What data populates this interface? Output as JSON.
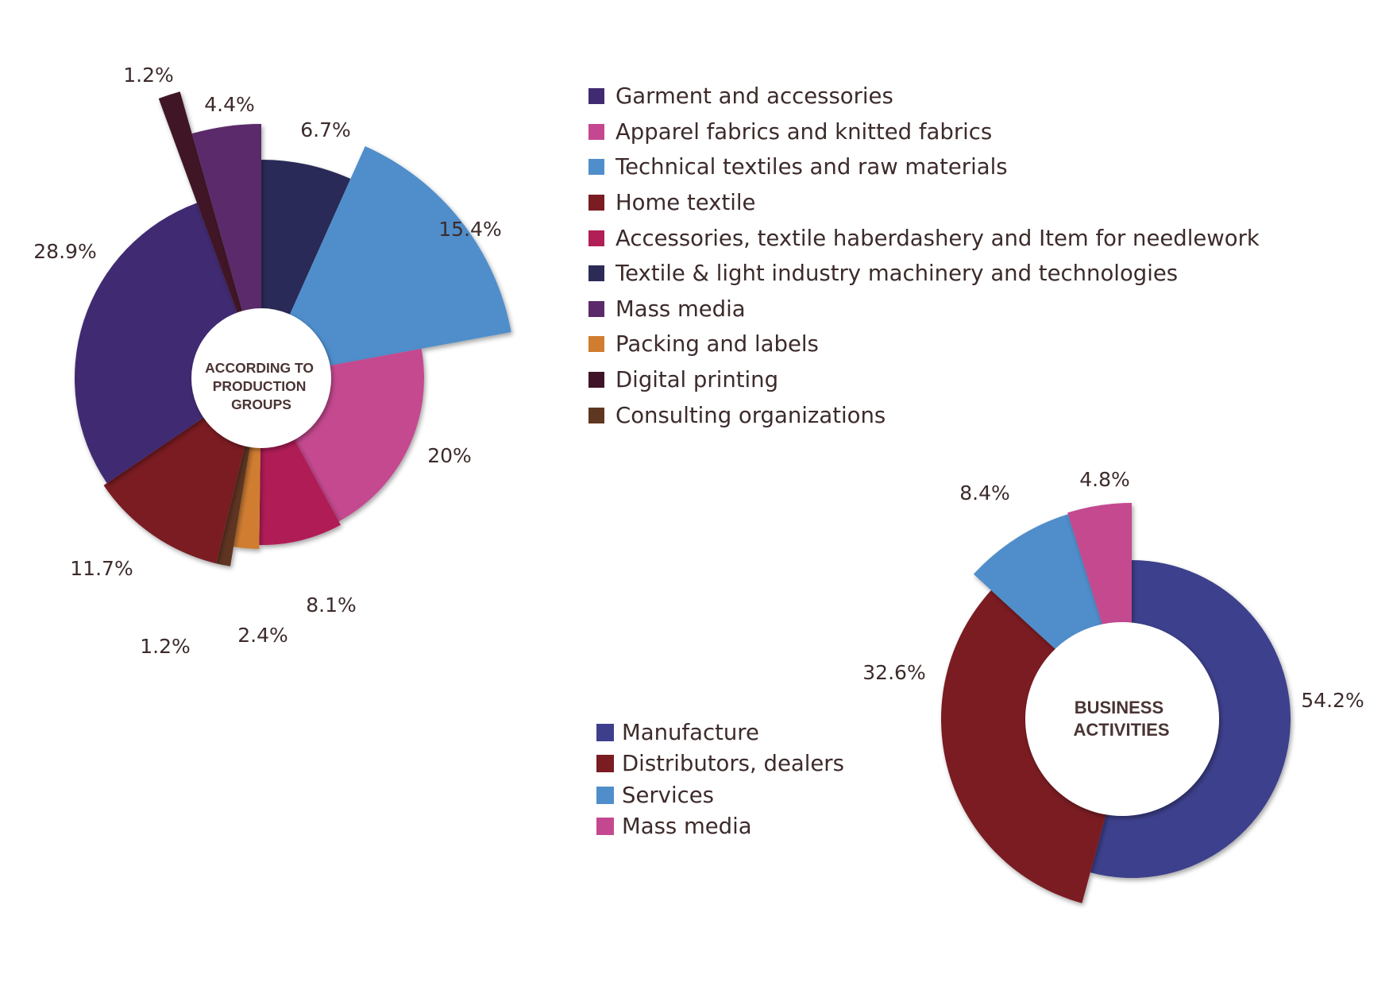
{
  "chart_data": [
    {
      "type": "pie",
      "center_label": [
        "ACCORDING TO",
        "PRODUCTION",
        "GROUPS"
      ],
      "slices": [
        {
          "name": "Textile & light industry machinery and technologies",
          "value": 6.7,
          "label": "6.7%",
          "color": "#2c2b58"
        },
        {
          "name": "Technical textiles and raw materials",
          "value": 15.4,
          "label": "15.4%",
          "color": "#508ecb"
        },
        {
          "name": "Apparel fabrics and knitted fabrics",
          "value": 20,
          "label": "20%",
          "color": "#c4488f"
        },
        {
          "name": "Accessories, textile haberdashery and Item for needlework",
          "value": 8.1,
          "label": "8.1%",
          "color": "#b01f56"
        },
        {
          "name": "Packing and labels",
          "value": 2.4,
          "label": "2.4%",
          "color": "#d07d30"
        },
        {
          "name": "Consulting organizations",
          "value": 1.2,
          "label": "1.2%",
          "color": "#5f3620"
        },
        {
          "name": "Home textile",
          "value": 11.7,
          "label": "11.7%",
          "color": "#7a1c22"
        },
        {
          "name": "Garment and accessories",
          "value": 28.9,
          "label": "28.9%",
          "color": "#402b72"
        },
        {
          "name": "Digital printing",
          "value": 1.2,
          "label": "1.2%",
          "color": "#3f1428"
        },
        {
          "name": "Mass media",
          "value": 4.4,
          "label": "4.4%",
          "color": "#5a2a6b"
        }
      ],
      "legend": [
        {
          "label": "Garment and accessories",
          "color": "#402b72"
        },
        {
          "label": "Apparel fabrics and knitted fabrics",
          "color": "#c4488f"
        },
        {
          "label": "Technical textiles and raw materials",
          "color": "#508ecb"
        },
        {
          "label": "Home textile",
          "color": "#7a1c22"
        },
        {
          "label": "Accessories, textile haberdashery and Item for needlework",
          "color": "#b01f56"
        },
        {
          "label": "Textile & light industry machinery and technologies",
          "color": "#2c2b58"
        },
        {
          "label": "Mass media",
          "color": "#5a2a6b"
        },
        {
          "label": "Packing and labels",
          "color": "#d07d30"
        },
        {
          "label": "Digital printing",
          "color": "#3f1428"
        },
        {
          "label": "Consulting organizations",
          "color": "#5f3620"
        }
      ]
    },
    {
      "type": "pie",
      "center_label": [
        "BUSINESS",
        "ACTIVITIES"
      ],
      "slices": [
        {
          "name": "Manufacture",
          "value": 54.2,
          "label": "54.2%",
          "color": "#3e3f8c"
        },
        {
          "name": "Distributors, dealers",
          "value": 32.6,
          "label": "32.6%",
          "color": "#7a1c22"
        },
        {
          "name": "Services",
          "value": 8.4,
          "label": "8.4%",
          "color": "#508ecb"
        },
        {
          "name": "Mass media",
          "value": 4.8,
          "label": "4.8%",
          "color": "#c4488f"
        }
      ],
      "legend": [
        {
          "label": "Manufacture",
          "color": "#3e3f8c"
        },
        {
          "label": "Distributors, dealers",
          "color": "#7a1c22"
        },
        {
          "label": "Services",
          "color": "#508ecb"
        },
        {
          "label": "Mass media",
          "color": "#c4488f"
        }
      ]
    }
  ]
}
